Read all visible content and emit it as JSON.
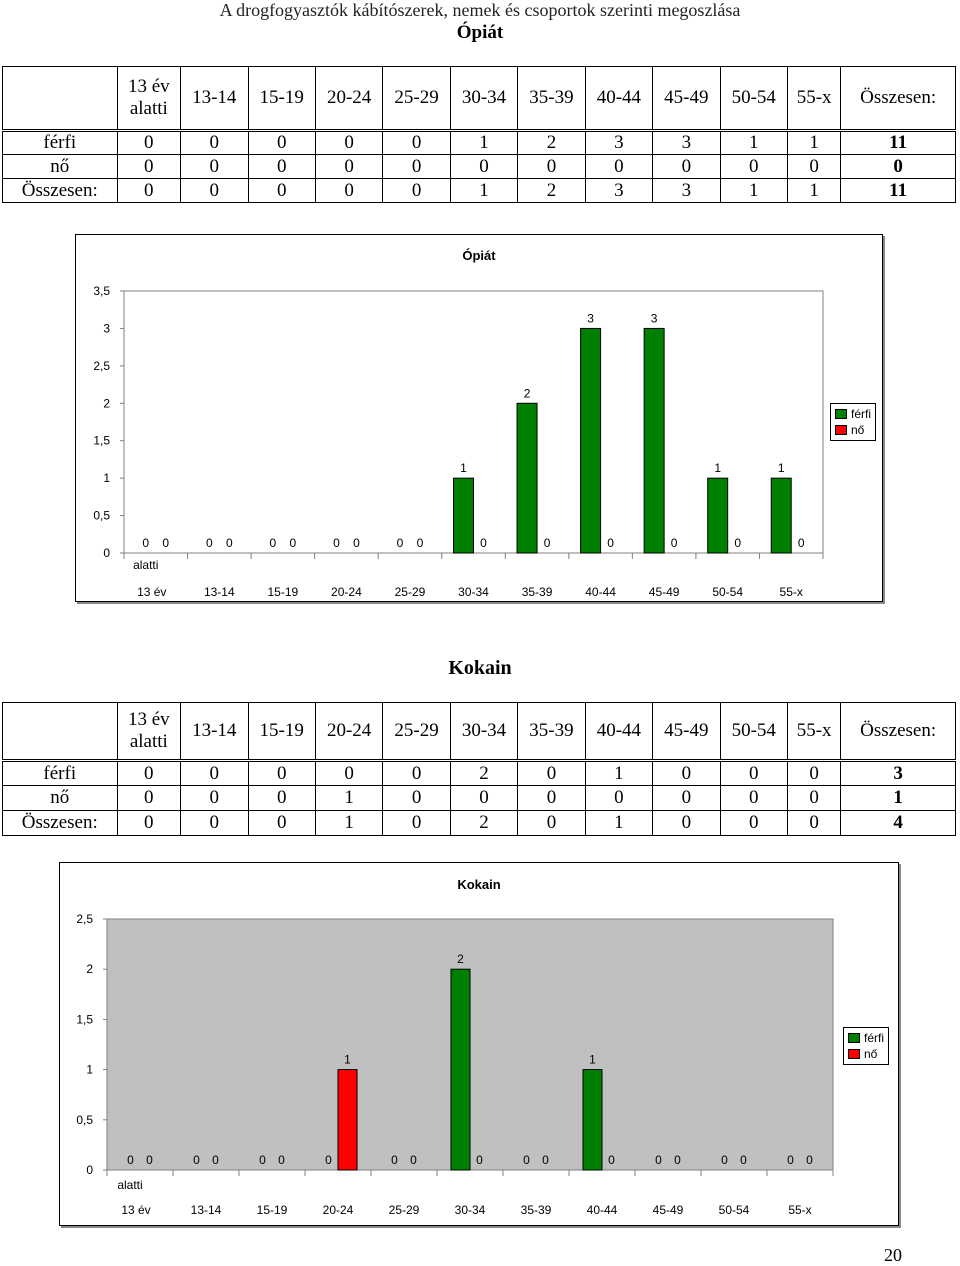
{
  "header": {
    "title": "A drogfogyasztók kábítószerek, nemek és csoportok szerinti megoszlása",
    "subtitle": "Ópiát"
  },
  "columns": [
    "13 év alatti",
    "13-14",
    "15-19",
    "20-24",
    "25-29",
    "30-34",
    "35-39",
    "40-44",
    "45-49",
    "50-54",
    "55-x",
    "Összesen:"
  ],
  "column_first_lines": [
    "13 év",
    "alatti"
  ],
  "opiat_table": {
    "rows": [
      {
        "label": "férfi",
        "values": [
          "0",
          "0",
          "0",
          "0",
          "0",
          "1",
          "2",
          "3",
          "3",
          "1",
          "1"
        ],
        "total": "11"
      },
      {
        "label": "nő",
        "values": [
          "0",
          "0",
          "0",
          "0",
          "0",
          "0",
          "0",
          "0",
          "0",
          "0",
          "0"
        ],
        "total": "0"
      },
      {
        "label": "Összesen:",
        "values": [
          "0",
          "0",
          "0",
          "0",
          "0",
          "1",
          "2",
          "3",
          "3",
          "1",
          "1"
        ],
        "total": "11"
      }
    ]
  },
  "kokain": {
    "section_title": "Kokain",
    "rows": [
      {
        "label": "férfi",
        "values": [
          "0",
          "0",
          "0",
          "0",
          "0",
          "2",
          "0",
          "1",
          "0",
          "0",
          "0"
        ],
        "total": "3"
      },
      {
        "label": "nő",
        "values": [
          "0",
          "0",
          "0",
          "1",
          "0",
          "0",
          "0",
          "0",
          "0",
          "0",
          "0"
        ],
        "total": "1"
      },
      {
        "label": "Összesen:",
        "values": [
          "0",
          "0",
          "0",
          "1",
          "0",
          "2",
          "0",
          "1",
          "0",
          "0",
          "0"
        ],
        "total": "4"
      }
    ]
  },
  "page_number": "20",
  "chart_data": [
    {
      "type": "bar",
      "title": "Ópiát",
      "categories": [
        "13 év alatti",
        "13-14",
        "15-19",
        "20-24",
        "25-29",
        "30-34",
        "35-39",
        "40-44",
        "45-49",
        "50-54",
        "55-x"
      ],
      "series": [
        {
          "name": "férfi",
          "values": [
            0,
            0,
            0,
            0,
            0,
            1,
            2,
            3,
            3,
            1,
            1
          ],
          "color": "#008000"
        },
        {
          "name": "nő",
          "values": [
            0,
            0,
            0,
            0,
            0,
            0,
            0,
            0,
            0,
            0,
            0
          ],
          "color": "#ff0000"
        }
      ],
      "ylim": [
        0,
        3.5
      ],
      "yticks": [
        "0",
        "0,5",
        "1",
        "1,5",
        "2",
        "2,5",
        "3",
        "3,5"
      ],
      "grid": false,
      "legend": "right",
      "plot_background": "#ffffff"
    },
    {
      "type": "bar",
      "title": "Kokain",
      "categories": [
        "13 év alatti",
        "13-14",
        "15-19",
        "20-24",
        "25-29",
        "30-34",
        "35-39",
        "40-44",
        "45-49",
        "50-54",
        "55-x"
      ],
      "series": [
        {
          "name": "férfi",
          "values": [
            0,
            0,
            0,
            0,
            0,
            2,
            0,
            1,
            0,
            0,
            0
          ],
          "color": "#008000"
        },
        {
          "name": "nő",
          "values": [
            0,
            0,
            0,
            1,
            0,
            0,
            0,
            0,
            0,
            0,
            0
          ],
          "color": "#ff0000"
        }
      ],
      "ylim": [
        0,
        2.5
      ],
      "yticks": [
        "0",
        "0,5",
        "1",
        "1,5",
        "2",
        "2,5"
      ],
      "grid": false,
      "legend": "right",
      "plot_background": "#c0c0c0"
    }
  ]
}
